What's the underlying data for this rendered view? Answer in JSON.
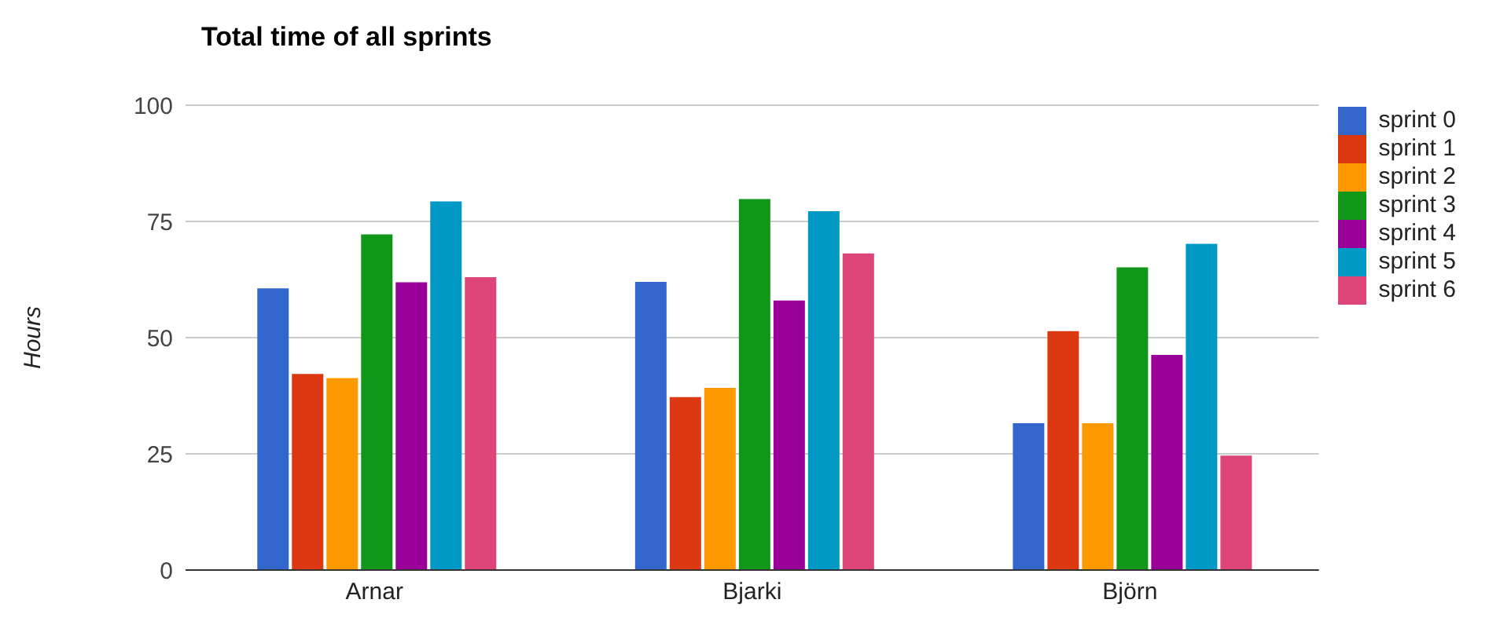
{
  "chart_data": {
    "type": "bar",
    "title": "Total time of all sprints",
    "ylabel": "Hours",
    "categories": [
      "Arnar",
      "Bjarki",
      "Björn"
    ],
    "series": [
      {
        "name": "sprint 0",
        "color": "#3366cc",
        "values": [
          60.6,
          62.0,
          31.6
        ]
      },
      {
        "name": "sprint 1",
        "color": "#dc3912",
        "values": [
          42.2,
          37.2,
          51.4
        ]
      },
      {
        "name": "sprint 2",
        "color": "#ff9900",
        "values": [
          41.3,
          39.2,
          31.6
        ]
      },
      {
        "name": "sprint 3",
        "color": "#109618",
        "values": [
          72.2,
          79.8,
          65.1
        ]
      },
      {
        "name": "sprint 4",
        "color": "#990099",
        "values": [
          61.9,
          58.0,
          46.3
        ]
      },
      {
        "name": "sprint 5",
        "color": "#0099c6",
        "values": [
          79.3,
          77.2,
          70.2
        ]
      },
      {
        "name": "sprint 6",
        "color": "#dd4477",
        "values": [
          63.0,
          68.1,
          24.6
        ]
      }
    ],
    "ylim": [
      0,
      100
    ],
    "yticks": [
      0,
      25,
      50,
      75,
      100
    ],
    "grid": "y",
    "legend": "top right"
  }
}
